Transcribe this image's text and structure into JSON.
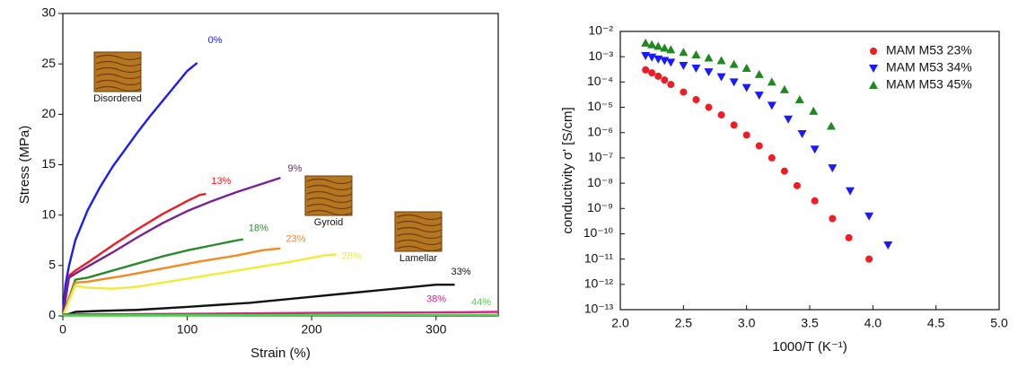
{
  "chart_data": [
    {
      "type": "line",
      "xlabel": "Strain (%)",
      "ylabel": "Stress (MPa)",
      "xlim": [
        0,
        350
      ],
      "ylim": [
        0,
        30
      ],
      "xticks": [
        0,
        100,
        200,
        300
      ],
      "yticks": [
        0,
        5,
        10,
        15,
        20,
        25,
        30
      ],
      "insets": [
        "Disordered",
        "Gyroid",
        "Lamellar"
      ],
      "series": [
        {
          "name": "0%",
          "color": "#1a1aff",
          "x": [
            0,
            2,
            5,
            10,
            20,
            30,
            40,
            50,
            60,
            70,
            80,
            90,
            100,
            108
          ],
          "values": [
            0,
            3,
            5,
            7.5,
            10.5,
            12.8,
            14.8,
            16.5,
            18.2,
            19.8,
            21.3,
            22.8,
            24.3,
            25.1
          ]
        },
        {
          "name": "13%",
          "color": "#ee1c24",
          "x": [
            0,
            5,
            10,
            20,
            40,
            60,
            80,
            100,
            110,
            115
          ],
          "values": [
            0,
            4,
            4.5,
            5.3,
            7,
            8.6,
            10.1,
            11.4,
            12,
            12.1
          ]
        },
        {
          "name": "9%",
          "color": "#7b2090",
          "x": [
            0,
            5,
            10,
            20,
            40,
            60,
            80,
            100,
            120,
            140,
            160,
            175
          ],
          "values": [
            0,
            3.8,
            4.2,
            4.9,
            6.3,
            7.8,
            9.2,
            10.4,
            11.4,
            12.3,
            13.1,
            13.7
          ]
        },
        {
          "name": "18%",
          "color": "#2a8a2a",
          "x": [
            0,
            10,
            20,
            40,
            60,
            80,
            100,
            120,
            140,
            145
          ],
          "values": [
            0,
            3.6,
            3.8,
            4.5,
            5.2,
            5.9,
            6.5,
            7,
            7.5,
            7.6
          ]
        },
        {
          "name": "23%",
          "color": "#f28a1e",
          "x": [
            0,
            10,
            20,
            50,
            80,
            110,
            140,
            160,
            175
          ],
          "values": [
            0,
            3.3,
            3.4,
            4,
            4.7,
            5.4,
            6,
            6.5,
            6.7
          ]
        },
        {
          "name": "28%",
          "color": "#f2ea3a",
          "x": [
            0,
            10,
            20,
            40,
            60,
            80,
            100,
            140,
            180,
            210,
            220
          ],
          "values": [
            0,
            3,
            2.8,
            2.7,
            2.9,
            3.3,
            3.7,
            4.5,
            5.3,
            6,
            6.1
          ]
        },
        {
          "name": "33%",
          "color": "#111111",
          "x": [
            0,
            10,
            30,
            60,
            100,
            150,
            200,
            250,
            300,
            315
          ],
          "values": [
            0,
            0.4,
            0.5,
            0.6,
            0.9,
            1.3,
            1.9,
            2.5,
            3.1,
            3.1
          ]
        },
        {
          "name": "38%",
          "color": "#d9238c",
          "x": [
            0,
            100,
            200,
            300,
            350
          ],
          "values": [
            0.15,
            0.2,
            0.3,
            0.35,
            0.4
          ]
        },
        {
          "name": "44%",
          "color": "#3ddc3d",
          "x": [
            0,
            350
          ],
          "values": [
            0.05,
            0.1
          ]
        }
      ]
    },
    {
      "type": "scatter",
      "xlabel": "1000/T (K⁻¹)",
      "ylabel": "conductivity σ' [S/cm]",
      "xlim": [
        2,
        5
      ],
      "ylim": [
        1e-13,
        0.01
      ],
      "yscale": "log",
      "legend": "upper right",
      "xticks": [
        {
          "value": 2,
          "label": "2.0"
        },
        {
          "value": 2.5,
          "label": "2.5"
        },
        {
          "value": 3,
          "label": "3.0"
        },
        {
          "value": 3.5,
          "label": "3.5"
        },
        {
          "value": 4,
          "label": "4.0"
        },
        {
          "value": 4.5,
          "label": "4.5"
        },
        {
          "value": 5,
          "label": "5.0"
        }
      ],
      "yticks": [
        {
          "value": 1e-13,
          "label": "10⁻¹³"
        },
        {
          "value": 1e-12,
          "label": "10⁻¹²"
        },
        {
          "value": 1e-11,
          "label": "10⁻¹¹"
        },
        {
          "value": 1e-10,
          "label": "10⁻¹⁰"
        },
        {
          "value": 1e-09,
          "label": "10⁻⁹"
        },
        {
          "value": 1e-08,
          "label": "10⁻⁸"
        },
        {
          "value": 1e-07,
          "label": "10⁻⁷"
        },
        {
          "value": 1e-06,
          "label": "10⁻⁶"
        },
        {
          "value": 1e-05,
          "label": "10⁻⁵"
        },
        {
          "value": 0.0001,
          "label": "10⁻⁴"
        },
        {
          "value": 0.001,
          "label": "10⁻³"
        },
        {
          "value": 0.01,
          "label": "10⁻²"
        }
      ],
      "series": [
        {
          "name": "MAM M53 23%",
          "color": "#ee1c24",
          "marker": "circle",
          "x": [
            2.2,
            2.25,
            2.3,
            2.35,
            2.4,
            2.5,
            2.6,
            2.7,
            2.8,
            2.9,
            3.0,
            3.1,
            3.2,
            3.3,
            3.4,
            3.54,
            3.68,
            3.81,
            3.97
          ],
          "values": [
            0.0003,
            0.00023,
            0.00017,
            0.00012,
            8e-05,
            4e-05,
            2e-05,
            1e-05,
            5e-06,
            2e-06,
            8e-07,
            3e-07,
            1e-07,
            3e-08,
            8e-09,
            2e-09,
            4e-10,
            7e-11,
            1e-11
          ]
        },
        {
          "name": "MAM M53 34%",
          "color": "#1a1aff",
          "marker": "triangle-down",
          "x": [
            2.2,
            2.25,
            2.3,
            2.35,
            2.4,
            2.5,
            2.6,
            2.7,
            2.8,
            2.9,
            3.0,
            3.1,
            3.2,
            3.33,
            3.44,
            3.54,
            3.68,
            3.82,
            3.97,
            4.12
          ],
          "values": [
            0.0011,
            0.00095,
            0.0008,
            0.0007,
            0.0006,
            0.00045,
            0.00035,
            0.00025,
            0.00016,
            0.0001,
            6e-05,
            3e-05,
            1.2e-05,
            3.4e-06,
            9e-07,
            2.2e-07,
            4e-08,
            5e-09,
            5e-10,
            3.6e-11
          ]
        },
        {
          "name": "MAM M53 45%",
          "color": "#1e8a1e",
          "marker": "triangle-up",
          "x": [
            2.2,
            2.25,
            2.3,
            2.35,
            2.4,
            2.5,
            2.6,
            2.7,
            2.8,
            2.9,
            3.0,
            3.1,
            3.2,
            3.3,
            3.42,
            3.53,
            3.67
          ],
          "values": [
            0.0035,
            0.003,
            0.0026,
            0.0022,
            0.0019,
            0.0015,
            0.0012,
            0.0009,
            0.0007,
            0.0005,
            0.00035,
            0.0002,
            0.0001,
            5e-05,
            2e-05,
            7e-06,
            1.8e-06
          ]
        }
      ]
    }
  ]
}
